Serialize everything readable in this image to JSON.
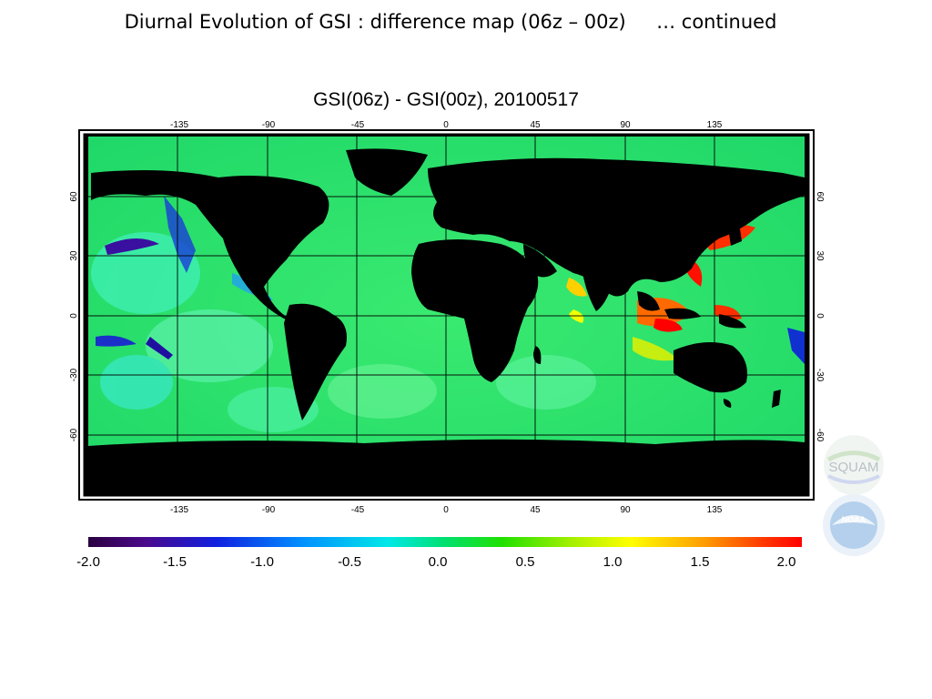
{
  "slide": {
    "title": "Diurnal Evolution of GSI : difference map (06z – 00z)     … continued"
  },
  "map": {
    "title": "GSI(06z) - GSI(00z), 20100517",
    "lon_ticks": [
      "-135",
      "-90",
      "-45",
      "0",
      "45",
      "90",
      "135"
    ],
    "lat_ticks": [
      "60",
      "30",
      "0",
      "-30",
      "-60"
    ],
    "land_color": "#000000",
    "neutral_color": "#22e36a"
  },
  "colorbar": {
    "labels": [
      "-2.0",
      "-1.5",
      "-1.0",
      "-0.5",
      "0.0",
      "0.5",
      "1.0",
      "1.5",
      "2.0"
    ],
    "stops": [
      "#2b0040",
      "#4a0a8c",
      "#1020e0",
      "#0090ff",
      "#00e8e8",
      "#00e070",
      "#20e000",
      "#a8f000",
      "#ffff00",
      "#ffa000",
      "#ff4000",
      "#ff0000"
    ]
  },
  "logos": {
    "squam": "SQUAM",
    "noaa": "NOAA"
  }
}
